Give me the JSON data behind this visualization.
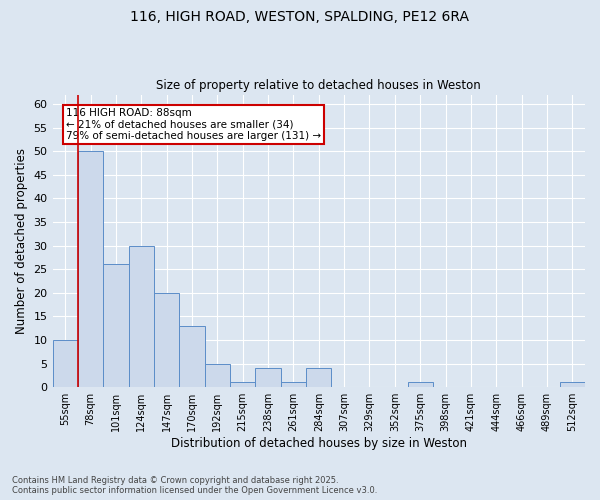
{
  "title_line1": "116, HIGH ROAD, WESTON, SPALDING, PE12 6RA",
  "title_line2": "Size of property relative to detached houses in Weston",
  "xlabel": "Distribution of detached houses by size in Weston",
  "ylabel": "Number of detached properties",
  "categories": [
    "55sqm",
    "78sqm",
    "101sqm",
    "124sqm",
    "147sqm",
    "170sqm",
    "192sqm",
    "215sqm",
    "238sqm",
    "261sqm",
    "284sqm",
    "307sqm",
    "329sqm",
    "352sqm",
    "375sqm",
    "398sqm",
    "421sqm",
    "444sqm",
    "466sqm",
    "489sqm",
    "512sqm"
  ],
  "values": [
    10,
    50,
    26,
    30,
    20,
    13,
    5,
    1,
    4,
    1,
    4,
    0,
    0,
    0,
    1,
    0,
    0,
    0,
    0,
    0,
    1
  ],
  "bar_color": "#ccd9eb",
  "bar_edge_color": "#5b8dc8",
  "background_color": "#dce6f1",
  "grid_color": "#ffffff",
  "vline_color": "#cc0000",
  "annotation_text": "116 HIGH ROAD: 88sqm\n← 21% of detached houses are smaller (34)\n79% of semi-detached houses are larger (131) →",
  "annotation_box_color": "#ffffff",
  "annotation_box_edge": "#cc0000",
  "ylim": [
    0,
    62
  ],
  "yticks": [
    0,
    5,
    10,
    15,
    20,
    25,
    30,
    35,
    40,
    45,
    50,
    55,
    60
  ],
  "footer_line1": "Contains HM Land Registry data © Crown copyright and database right 2025.",
  "footer_line2": "Contains public sector information licensed under the Open Government Licence v3.0."
}
